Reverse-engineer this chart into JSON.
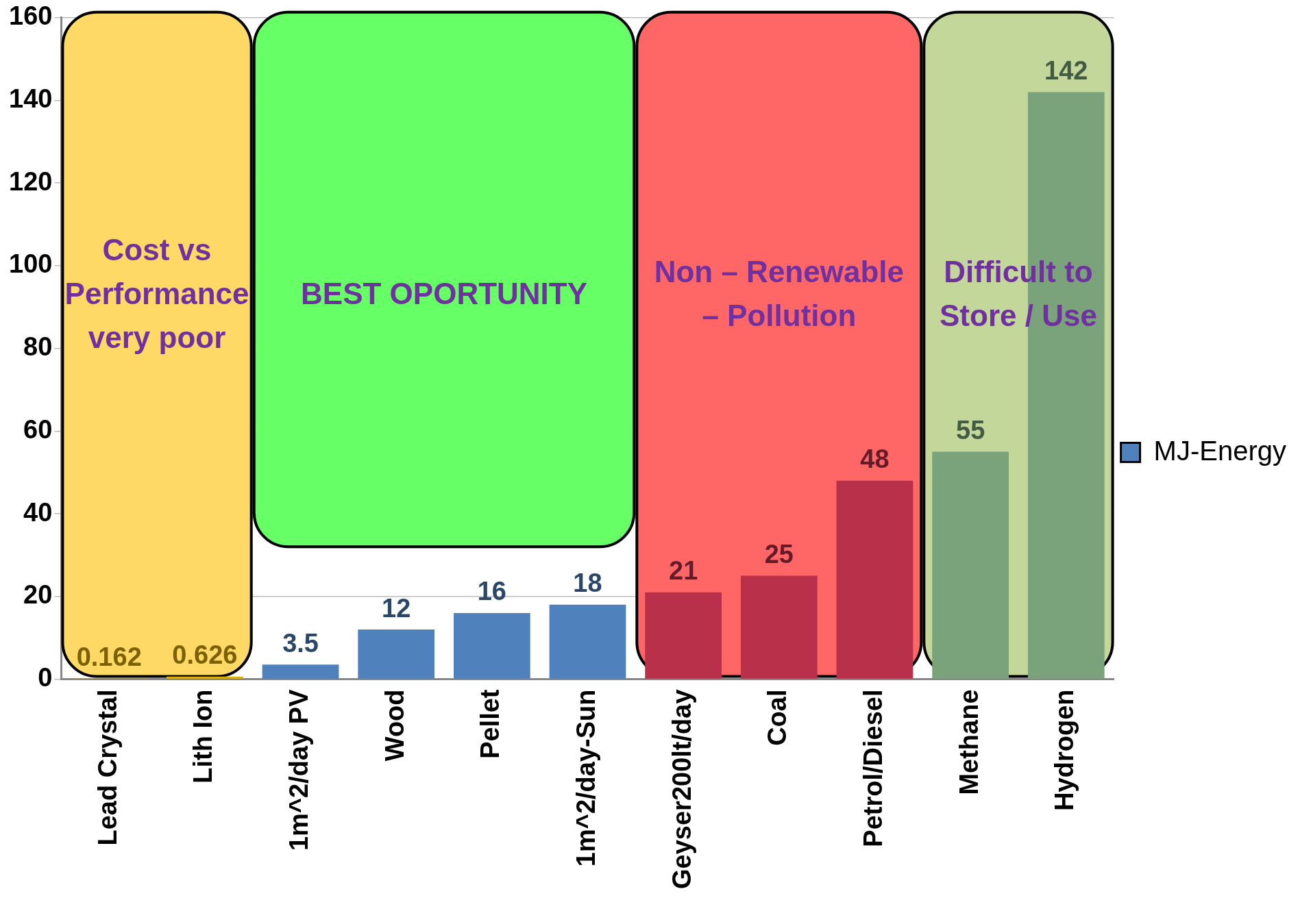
{
  "chart_data": {
    "type": "bar",
    "categories": [
      "Lead Crystal",
      "Lith Ion",
      "1m^2/day PV",
      "Wood",
      "Pellet",
      "1m^2/day-Sun",
      "Geyser200lt/day",
      "Coal",
      "Petrol/Diesel",
      "Methane",
      "Hydrogen"
    ],
    "series": [
      {
        "name": "MJ-Energy",
        "color": "#4f81bd",
        "colors": [
          "#e0b000",
          "#e0b000",
          "#4f81bd",
          "#4f81bd",
          "#4f81bd",
          "#4f81bd",
          "#b8304a",
          "#b8304a",
          "#b8304a",
          "#7aa37c",
          "#7aa37c"
        ],
        "values": [
          0.162,
          0.626,
          3.5,
          12,
          16,
          18,
          21,
          25,
          48,
          55,
          142
        ]
      }
    ],
    "ylim": [
      0,
      160
    ],
    "yticks": [
      0,
      20,
      40,
      60,
      80,
      100,
      120,
      140,
      160
    ],
    "grid": "y",
    "legend": "right",
    "data_labels": true,
    "bands": [
      {
        "axis": "x",
        "from": "Lead Crystal",
        "to": "Lith Ion",
        "label": "Cost vs Performance very poor",
        "color": "#ffd966"
      },
      {
        "axis": "x",
        "from": "1m^2/day PV",
        "to": "1m^2/day-Sun",
        "label": "BEST OPORTUNITY",
        "color": "#66ff66"
      },
      {
        "axis": "x",
        "from": "Geyser200lt/day",
        "to": "Petrol/Diesel",
        "label": "Non – Renewable – Pollution",
        "color": "#ff6666"
      },
      {
        "axis": "x",
        "from": "Methane",
        "to": "Hydrogen",
        "label": "Difficult to Store / Use",
        "color": "#c4d79b"
      }
    ]
  }
}
